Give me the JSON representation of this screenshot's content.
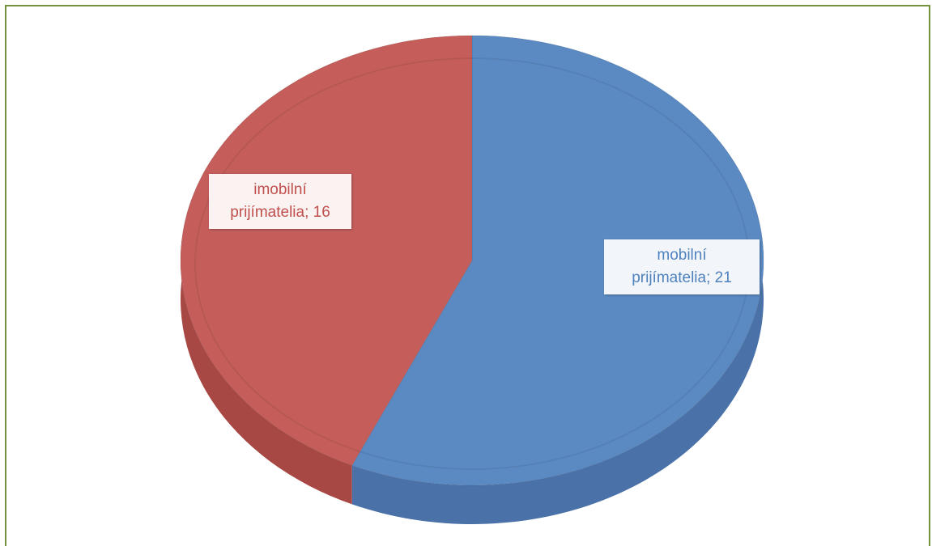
{
  "chart_data": {
    "type": "pie",
    "title": "",
    "slices": [
      {
        "label": "mobilní prijímatelia",
        "value": 21,
        "color": "#5b8ac3"
      },
      {
        "label": "imobilní prijímatelia",
        "value": 16,
        "color": "#c55e5b"
      }
    ],
    "data_labels": [
      {
        "line1": "mobilní",
        "line2": "prijímatelia; 21"
      },
      {
        "line1": "imobilní",
        "line2": "prijímatelia; 16"
      }
    ],
    "style": "3d"
  },
  "colors": {
    "frame_border": "#76923c",
    "mobilni": "#5b8ac3",
    "mobilni_side": "#4a72a8",
    "imobilni": "#c55e5b",
    "imobilni_side": "#a84844"
  }
}
